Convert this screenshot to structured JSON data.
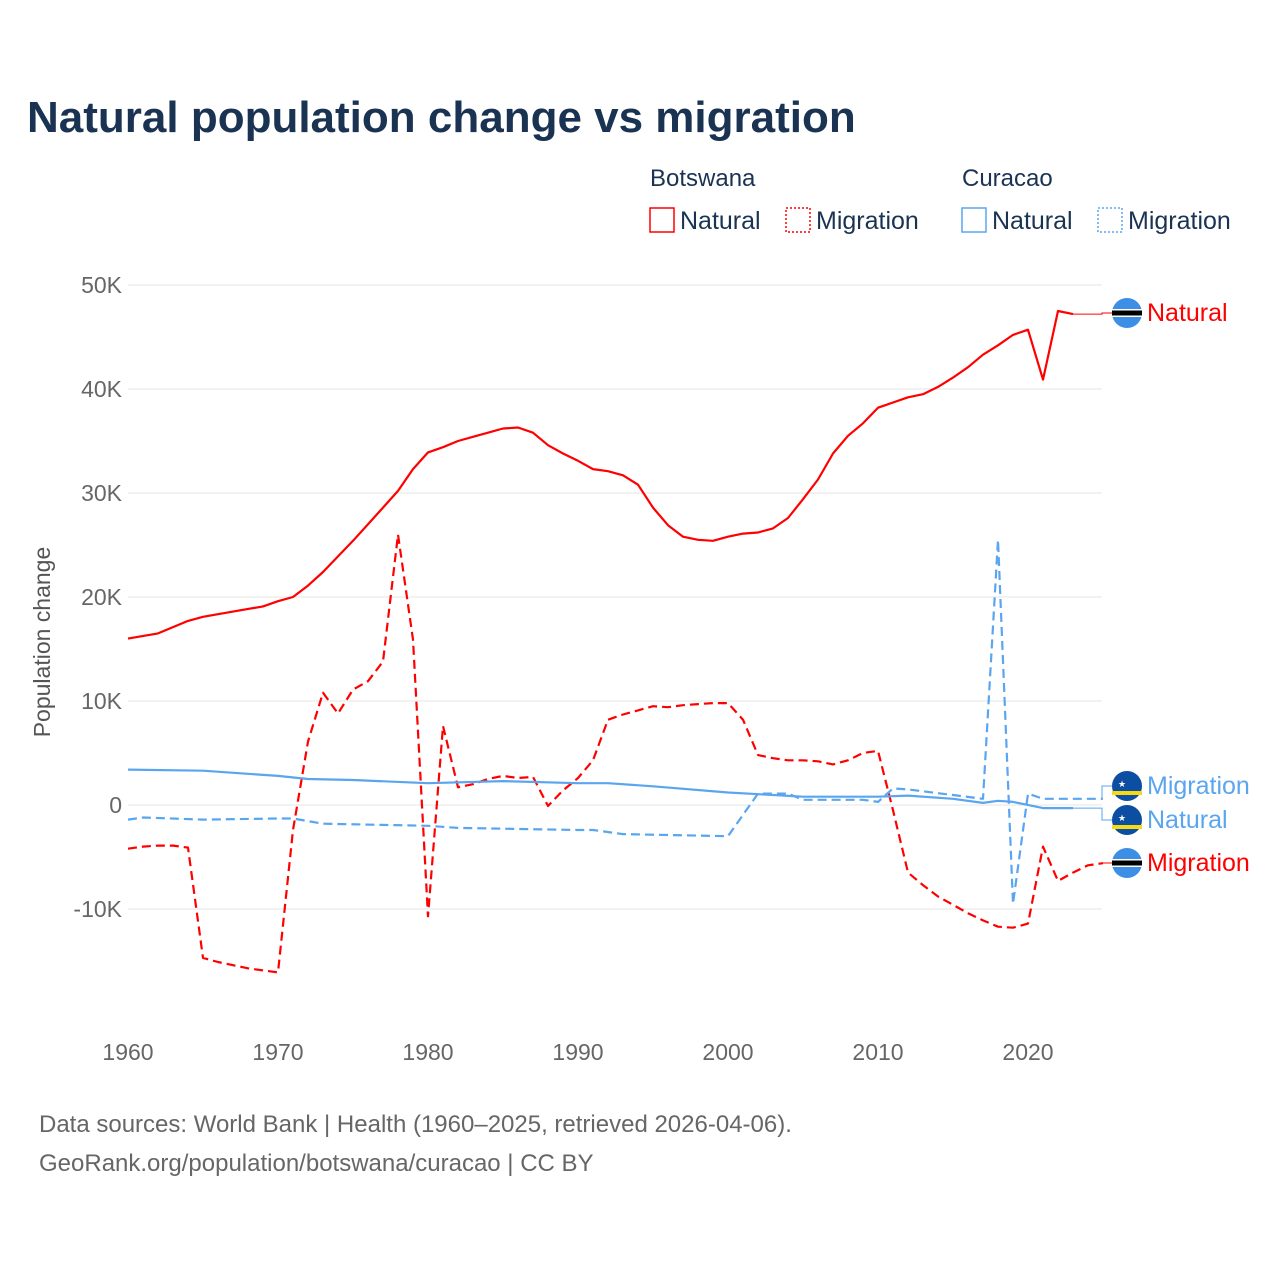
{
  "chart_data": {
    "type": "line",
    "title": "Natural population change vs migration",
    "ylabel": "Population change",
    "xlabel": "",
    "xlim": [
      1960,
      2025
    ],
    "ylim": [
      -20000,
      50000
    ],
    "xticks": [
      {
        "v": 1960,
        "label": "1960"
      },
      {
        "v": 1970,
        "label": "1970"
      },
      {
        "v": 1980,
        "label": "1980"
      },
      {
        "v": 1990,
        "label": "1990"
      },
      {
        "v": 2000,
        "label": "2000"
      },
      {
        "v": 2010,
        "label": "2010"
      },
      {
        "v": 2020,
        "label": "2020"
      }
    ],
    "yticks": [
      {
        "v": 50000,
        "label": "50K"
      },
      {
        "v": 40000,
        "label": "40K"
      },
      {
        "v": 30000,
        "label": "30K"
      },
      {
        "v": 20000,
        "label": "20K"
      },
      {
        "v": 10000,
        "label": "10K"
      },
      {
        "v": 0,
        "label": "0"
      },
      {
        "v": -10000,
        "label": "-10K"
      }
    ],
    "grid": true,
    "legend_placement": "top-right",
    "legend": [
      {
        "group": "Botswana",
        "items": [
          "Natural",
          "Migration"
        ]
      },
      {
        "group": "Curacao",
        "items": [
          "Natural",
          "Migration"
        ]
      }
    ],
    "colors": {
      "Botswana": "#ff0000",
      "Curacao": "#5aa5f0"
    },
    "series": [
      {
        "name": "Botswana Natural",
        "country": "Botswana",
        "kind": "Natural",
        "dash": false,
        "end_label": "Natural",
        "x": [
          1960,
          1962,
          1964,
          1965,
          1967,
          1969,
          1970,
          1971,
          1972,
          1973,
          1974,
          1975,
          1976,
          1977,
          1978,
          1979,
          1980,
          1981,
          1982,
          1983,
          1984,
          1985,
          1986,
          1987,
          1988,
          1989,
          1990,
          1991,
          1992,
          1993,
          1994,
          1995,
          1996,
          1997,
          1998,
          1999,
          2000,
          2001,
          2002,
          2003,
          2004,
          2005,
          2006,
          2007,
          2008,
          2009,
          2010,
          2011,
          2012,
          2013,
          2014,
          2015,
          2016,
          2017,
          2018,
          2019,
          2020,
          2021,
          2022,
          2023
        ],
        "y": [
          16000,
          16500,
          17700,
          18100,
          18600,
          19100,
          19600,
          20000,
          21100,
          22400,
          23900,
          25400,
          27000,
          28600,
          30200,
          32300,
          33900,
          34400,
          35000,
          35400,
          35800,
          36200,
          36300,
          35800,
          34600,
          33800,
          33100,
          32300,
          32100,
          31700,
          30800,
          28600,
          26900,
          25800,
          25500,
          25400,
          25800,
          26100,
          26200,
          26600,
          27600,
          29400,
          31300,
          33800,
          35500,
          36700,
          38200,
          38700,
          39200,
          39500,
          40200,
          41100,
          42100,
          43300,
          44200,
          45200,
          45700,
          40900,
          47500,
          47200
        ]
      },
      {
        "name": "Botswana Migration",
        "country": "Botswana",
        "kind": "Migration",
        "dash": true,
        "end_label": "Migration",
        "x": [
          1960,
          1961,
          1962,
          1963,
          1964,
          1965,
          1966,
          1967,
          1968,
          1969,
          1970,
          1971,
          1972,
          1973,
          1974,
          1975,
          1976,
          1977,
          1978,
          1979,
          1980,
          1981,
          1982,
          1983,
          1984,
          1985,
          1986,
          1987,
          1988,
          1989,
          1990,
          1991,
          1992,
          1993,
          1994,
          1995,
          1996,
          1997,
          1998,
          1999,
          2000,
          2001,
          2002,
          2003,
          2004,
          2005,
          2006,
          2007,
          2008,
          2009,
          2010,
          2011,
          2012,
          2013,
          2014,
          2015,
          2016,
          2017,
          2018,
          2019,
          2020,
          2021,
          2022,
          2023,
          2024,
          2025
        ],
        "y": [
          -4200,
          -4000,
          -3900,
          -3900,
          -4100,
          -14700,
          -15100,
          -15400,
          -15700,
          -15900,
          -16100,
          -2400,
          6100,
          10800,
          8800,
          11100,
          11900,
          13800,
          26000,
          15900,
          -10700,
          7600,
          1700,
          2000,
          2500,
          2800,
          2600,
          2700,
          -100,
          1400,
          2600,
          4300,
          8200,
          8700,
          9100,
          9500,
          9400,
          9600,
          9700,
          9800,
          9800,
          8200,
          4800,
          4500,
          4300,
          4300,
          4200,
          3900,
          4300,
          5000,
          5200,
          -500,
          -6500,
          -7700,
          -8800,
          -9600,
          -10400,
          -11100,
          -11700,
          -11800,
          -11400,
          -4000,
          -7300,
          -6500,
          -5800,
          -5600
        ]
      },
      {
        "name": "Curacao Natural",
        "country": "Curacao",
        "kind": "Natural",
        "dash": false,
        "end_label": "Natural",
        "x": [
          1960,
          1965,
          1970,
          1972,
          1975,
          1980,
          1985,
          1990,
          1992,
          1995,
          2000,
          2005,
          2010,
          2012,
          2015,
          2017,
          2018,
          2019,
          2021,
          2023
        ],
        "y": [
          3400,
          3300,
          2800,
          2500,
          2400,
          2100,
          2300,
          2100,
          2100,
          1800,
          1200,
          800,
          800,
          900,
          600,
          200,
          400,
          300,
          -300,
          -300
        ]
      },
      {
        "name": "Curacao Migration",
        "country": "Curacao",
        "kind": "Migration",
        "dash": true,
        "end_label": "Migration",
        "x": [
          1960,
          1961,
          1965,
          1970,
          1971,
          1973,
          1980,
          1982,
          1990,
          1991,
          1993,
          2000,
          2002,
          2004,
          2005,
          2009,
          2010,
          2011,
          2012,
          2017,
          2018,
          2019,
          2020,
          2021,
          2025
        ],
        "y": [
          -1400,
          -1200,
          -1400,
          -1300,
          -1300,
          -1800,
          -2000,
          -2200,
          -2400,
          -2400,
          -2800,
          -3000,
          1100,
          1100,
          500,
          500,
          300,
          1600,
          1500,
          600,
          25500,
          -9500,
          1100,
          600,
          600
        ]
      }
    ]
  },
  "footer": {
    "source": "Data sources: World Bank | Health (1960–2025, retrieved 2026-04-06).",
    "credit": "GeoRank.org/population/botswana/curacao | CC BY"
  }
}
